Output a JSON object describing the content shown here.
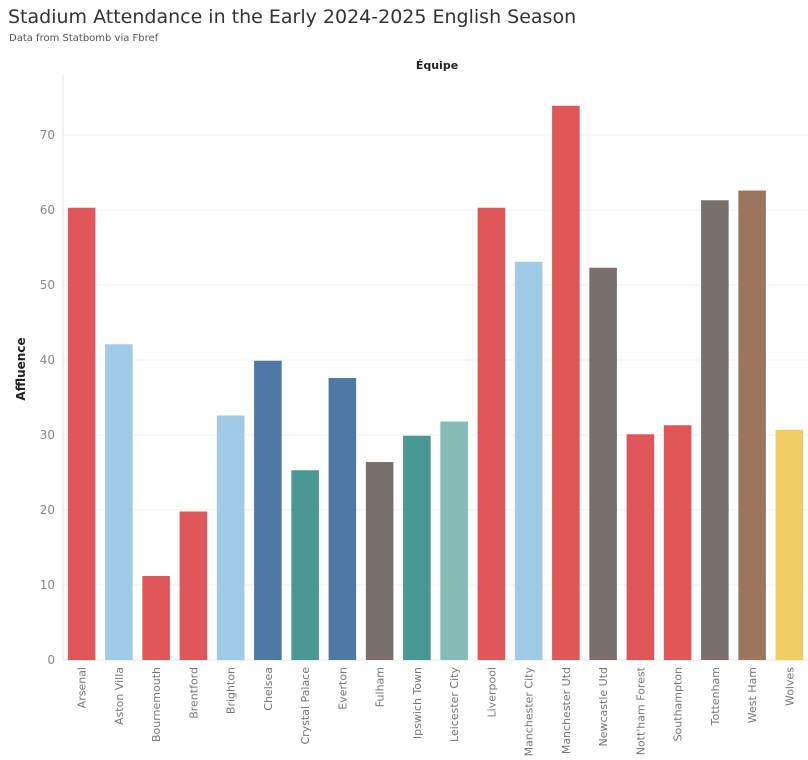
{
  "header": {
    "title": "Stadium Attendance in the Early 2024-2025 English Season",
    "subtitle": "Data from Statbomb via Fbref"
  },
  "chart_data": {
    "type": "bar",
    "column_header": "Équipe",
    "ylabel": "Affluence",
    "ylim": [
      0,
      78
    ],
    "yticks": [
      "0",
      "10",
      "20",
      "30",
      "40",
      "50",
      "60",
      "70"
    ],
    "grid": true,
    "categories": [
      "Arsenal",
      "Aston Villa",
      "Bournemouth",
      "Brentford",
      "Brighton",
      "Chelsea",
      "Crystal Palace",
      "Everton",
      "Fulham",
      "Ipswich Town",
      "Leicester City",
      "Liverpool",
      "Manchester City",
      "Manchester Utd",
      "Newcastle Utd",
      "Nott'ham Forest",
      "Southampton",
      "Tottenham",
      "West Ham",
      "Wolves"
    ],
    "values": [
      60.3,
      42.1,
      11.2,
      19.8,
      32.6,
      39.9,
      25.3,
      37.6,
      26.4,
      29.9,
      31.8,
      60.3,
      53.1,
      73.9,
      52.3,
      30.1,
      31.3,
      61.3,
      62.6,
      30.7
    ],
    "colors": [
      "#E15759",
      "#A0CBE8",
      "#E15759",
      "#E15759",
      "#A0CBE8",
      "#4E79A7",
      "#499894",
      "#4E79A7",
      "#79706E",
      "#499894",
      "#86BCB6",
      "#E15759",
      "#A0CBE8",
      "#E15759",
      "#79706E",
      "#E15759",
      "#E15759",
      "#79706E",
      "#9D7660",
      "#F1CE63"
    ]
  }
}
